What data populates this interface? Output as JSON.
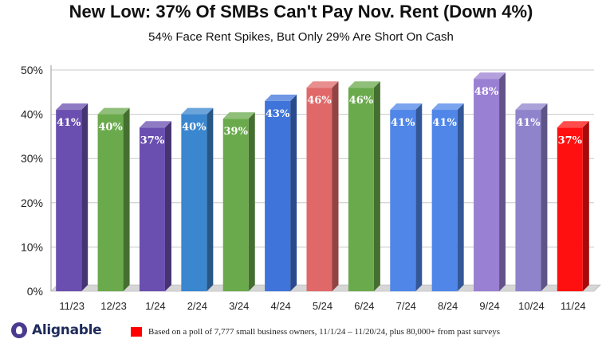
{
  "chart_data": {
    "type": "bar",
    "title": "New Low: 37% Of SMBs Can't Pay Nov. Rent (Down 4%)",
    "subtitle": "54% Face Rent Spikes, But Only 29% Are Short On Cash",
    "categories": [
      "11/23",
      "12/23",
      "1/24",
      "2/24",
      "3/24",
      "4/24",
      "5/24",
      "6/24",
      "7/24",
      "8/24",
      "9/24",
      "10/24",
      "11/24"
    ],
    "values": [
      41,
      40,
      37,
      40,
      39,
      43,
      46,
      46,
      41,
      41,
      48,
      41,
      37
    ],
    "data_labels": [
      "41%",
      "40%",
      "37%",
      "40%",
      "39%",
      "43%",
      "46%",
      "46%",
      "41%",
      "41%",
      "48%",
      "41%",
      "37%"
    ],
    "bar_colors": [
      "#6a4fb0",
      "#6aaa4c",
      "#6a4fb0",
      "#3a86cf",
      "#6aaa4c",
      "#3f74da",
      "#e06868",
      "#6aaa4c",
      "#4f86e8",
      "#4f86e8",
      "#9a80d2",
      "#8f83cc",
      "#ff1010"
    ],
    "ylim": [
      0,
      50
    ],
    "yticks": [
      0,
      10,
      20,
      30,
      40,
      50
    ],
    "ytick_labels": [
      "0%",
      "10%",
      "20%",
      "30%",
      "40%",
      "50%"
    ],
    "grid": true,
    "xlabel": "",
    "ylabel": ""
  },
  "logo": {
    "text": "Alignable"
  },
  "footnote": {
    "text": "Based on a poll of 7,777 small business owners, 11/1/24 – 11/20/24, plus 80,000+ from past surveys"
  }
}
